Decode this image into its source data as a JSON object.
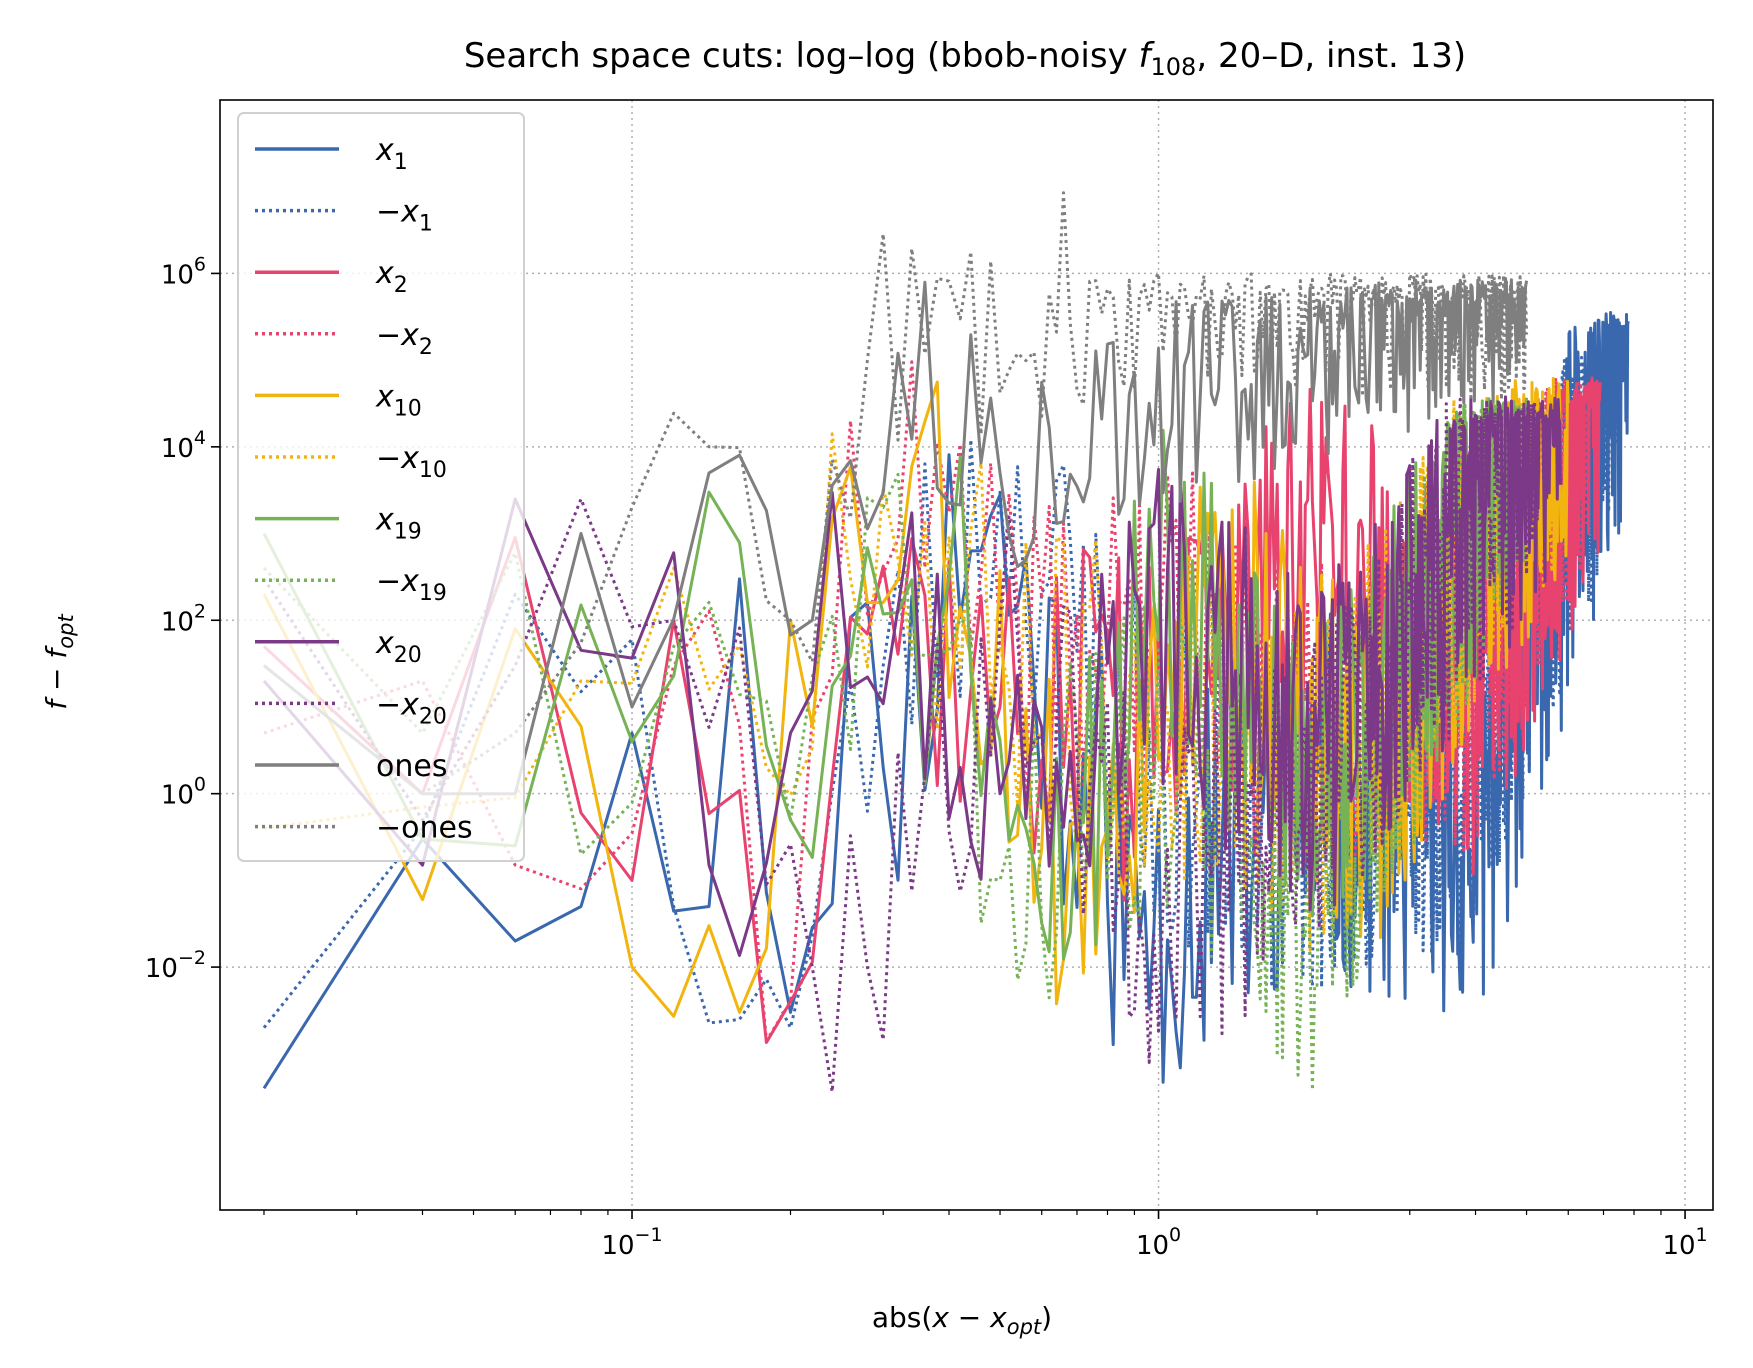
{
  "chart_data": {
    "type": "line",
    "title": "Search space cuts: log–log (bbob-noisy f108, 20–D, inst. 13)",
    "title_parts": {
      "prefix": "Search space cuts: log–log (bbob-noisy ",
      "fname": "f",
      "fsub": "108",
      "suffix": ", 20–D, inst. 13)"
    },
    "xlabel": "abs(x − x_opt)",
    "ylabel": "f − f_opt",
    "x_scale": "log",
    "y_scale": "log",
    "xlim": [
      0.0165,
      11.3
    ],
    "ylim": [
      1.58e-05,
      100000000
    ],
    "grid": true,
    "legend_position": "top-left",
    "x_ticks": [
      {
        "value": 0.1,
        "base": "10",
        "exp": "−1"
      },
      {
        "value": 1,
        "base": "10",
        "exp": "0"
      },
      {
        "value": 10,
        "base": "10",
        "exp": "1"
      }
    ],
    "y_ticks": [
      {
        "value": 0.01,
        "base": "10",
        "exp": "−2"
      },
      {
        "value": 1,
        "base": "10",
        "exp": "0"
      },
      {
        "value": 100,
        "base": "10",
        "exp": "2"
      },
      {
        "value": 10000,
        "base": "10",
        "exp": "4"
      },
      {
        "value": 1000000,
        "base": "10",
        "exp": "6"
      }
    ],
    "series": [
      {
        "name": "x_1",
        "label_main": "x",
        "label_sub": "1",
        "label_neg": false,
        "color": "#3a68ae",
        "dashed": false,
        "x_end": 7.8,
        "y_points": [
          [
            0.02,
            0.0004
          ],
          [
            0.04,
            0.3
          ],
          [
            0.06,
            0.02
          ],
          [
            0.08,
            0.05
          ],
          [
            0.1,
            5
          ],
          [
            0.14,
            0.05
          ],
          [
            0.16,
            300
          ],
          [
            0.2,
            0.003
          ],
          [
            0.25,
            20
          ],
          [
            0.3,
            2
          ],
          [
            0.45,
            4000
          ],
          [
            0.9,
            0.03
          ],
          [
            2,
            1
          ],
          [
            4,
            0.3
          ],
          [
            7.8,
            300000
          ]
        ],
        "noise_spread": 2.2,
        "seed": 11
      },
      {
        "name": "−x_1",
        "label_main": "x",
        "label_sub": "1",
        "label_neg": true,
        "color": "#3a68ae",
        "dashed": true,
        "x_end": 7.4,
        "y_points": [
          [
            0.02,
            0.002
          ],
          [
            0.04,
            0.4
          ],
          [
            0.06,
            200
          ],
          [
            0.08,
            15
          ],
          [
            0.1,
            60
          ],
          [
            0.12,
            0.05
          ],
          [
            0.2,
            0.002
          ],
          [
            0.3,
            30
          ],
          [
            0.5,
            3000
          ],
          [
            1,
            2
          ],
          [
            2,
            0.4
          ],
          [
            4,
            2
          ],
          [
            7.4,
            100000
          ]
        ],
        "noise_spread": 2.0,
        "seed": 23
      },
      {
        "name": "x_2",
        "label_main": "x",
        "label_sub": "2",
        "label_neg": false,
        "color": "#e8436e",
        "dashed": false,
        "x_end": 6.9,
        "y_points": [
          [
            0.02,
            50
          ],
          [
            0.04,
            1
          ],
          [
            0.06,
            900
          ],
          [
            0.08,
            0.6
          ],
          [
            0.1,
            0.1
          ],
          [
            0.12,
            100
          ],
          [
            0.2,
            0.004
          ],
          [
            0.25,
            1000
          ],
          [
            0.5,
            10
          ],
          [
            1,
            5
          ],
          [
            2,
            1000
          ],
          [
            4,
            10
          ],
          [
            6.9,
            50000
          ]
        ],
        "noise_spread": 2.0,
        "seed": 37
      },
      {
        "name": "−x_2",
        "label_main": "x",
        "label_sub": "2",
        "label_neg": true,
        "color": "#e8436e",
        "dashed": true,
        "x_end": 6.5,
        "y_points": [
          [
            0.02,
            5
          ],
          [
            0.04,
            20
          ],
          [
            0.06,
            0.15
          ],
          [
            0.08,
            0.08
          ],
          [
            0.12,
            30
          ],
          [
            0.2,
            0.004
          ],
          [
            0.26,
            20000
          ],
          [
            0.5,
            50
          ],
          [
            1,
            100
          ],
          [
            2,
            5
          ],
          [
            4,
            20
          ],
          [
            6.5,
            50000
          ]
        ],
        "noise_spread": 2.0,
        "seed": 41
      },
      {
        "name": "x_10",
        "label_main": "x",
        "label_sub": "10",
        "label_neg": false,
        "color": "#f2b50f",
        "dashed": false,
        "x_end": 6.0,
        "y_points": [
          [
            0.02,
            200
          ],
          [
            0.04,
            0.06
          ],
          [
            0.06,
            80
          ],
          [
            0.08,
            6
          ],
          [
            0.1,
            0.01
          ],
          [
            0.14,
            0.03
          ],
          [
            0.16,
            0.003
          ],
          [
            0.2,
            100
          ],
          [
            0.35,
            10000
          ],
          [
            0.7,
            0.05
          ],
          [
            1.3,
            200
          ],
          [
            2.5,
            1
          ],
          [
            6,
            50000
          ]
        ],
        "noise_spread": 2.0,
        "seed": 53
      },
      {
        "name": "−x_10",
        "label_main": "x",
        "label_sub": "10",
        "label_neg": true,
        "color": "#f2b50f",
        "dashed": true,
        "x_end": 5.6,
        "y_points": [
          [
            0.02,
            0.4
          ],
          [
            0.04,
            0.7
          ],
          [
            0.06,
            0.9
          ],
          [
            0.08,
            20
          ],
          [
            0.12,
            400
          ],
          [
            0.18,
            2
          ],
          [
            0.25,
            5000
          ],
          [
            0.5,
            50
          ],
          [
            1,
            10
          ],
          [
            2,
            1
          ],
          [
            5.6,
            30000
          ]
        ],
        "noise_spread": 2.0,
        "seed": 67
      },
      {
        "name": "x_19",
        "label_main": "x",
        "label_sub": "19",
        "label_neg": false,
        "color": "#77b256",
        "dashed": false,
        "x_end": 5.0,
        "y_points": [
          [
            0.02,
            1000
          ],
          [
            0.04,
            0.3
          ],
          [
            0.06,
            0.25
          ],
          [
            0.08,
            150
          ],
          [
            0.1,
            4
          ],
          [
            0.14,
            3000
          ],
          [
            0.2,
            0.5
          ],
          [
            0.4,
            300
          ],
          [
            0.62,
            0.015
          ],
          [
            1,
            300
          ],
          [
            2,
            1
          ],
          [
            5,
            30000
          ]
        ],
        "noise_spread": 2.0,
        "seed": 71
      },
      {
        "name": "−x_19",
        "label_main": "x",
        "label_sub": "19",
        "label_neg": true,
        "color": "#77b256",
        "dashed": true,
        "x_end": 4.7,
        "y_points": [
          [
            0.02,
            400
          ],
          [
            0.04,
            5
          ],
          [
            0.06,
            600
          ],
          [
            0.08,
            0.2
          ],
          [
            0.12,
            50
          ],
          [
            0.2,
            0.5
          ],
          [
            0.3,
            2000
          ],
          [
            0.5,
            0.1
          ],
          [
            1,
            5
          ],
          [
            2,
            0.02
          ],
          [
            4.7,
            30000
          ]
        ],
        "noise_spread": 2.0,
        "seed": 83
      },
      {
        "name": "x_20",
        "label_main": "x",
        "label_sub": "20",
        "label_neg": false,
        "color": "#7b3988",
        "dashed": false,
        "x_end": 5.8,
        "y_points": [
          [
            0.02,
            20
          ],
          [
            0.04,
            0.15
          ],
          [
            0.06,
            2500
          ],
          [
            0.08,
            45
          ],
          [
            0.12,
            600
          ],
          [
            0.14,
            0.15
          ],
          [
            0.2,
            5
          ],
          [
            0.24,
            3000
          ],
          [
            0.5,
            1
          ],
          [
            1,
            100
          ],
          [
            2,
            2
          ],
          [
            5.8,
            30000
          ]
        ],
        "noise_spread": 2.0,
        "seed": 97
      },
      {
        "name": "−x_20",
        "label_main": "x",
        "label_sub": "20",
        "label_neg": true,
        "color": "#7b3988",
        "dashed": true,
        "x_end": 5.4,
        "y_points": [
          [
            0.02,
            300
          ],
          [
            0.04,
            0.5
          ],
          [
            0.06,
            30
          ],
          [
            0.08,
            2500
          ],
          [
            0.12,
            100
          ],
          [
            0.22,
            0.01
          ],
          [
            0.28,
            0.01
          ],
          [
            0.5,
            100
          ],
          [
            1,
            0.05
          ],
          [
            2,
            1
          ],
          [
            5.4,
            30000
          ]
        ],
        "noise_spread": 2.0,
        "seed": 101
      },
      {
        "name": "ones",
        "label_main": "ones",
        "label_sub": "",
        "label_neg": false,
        "color": "#7f7f7f",
        "dashed": false,
        "x_end": 5.0,
        "y_points": [
          [
            0.02,
            30
          ],
          [
            0.04,
            1
          ],
          [
            0.06,
            1
          ],
          [
            0.08,
            1000
          ],
          [
            0.1,
            10
          ],
          [
            0.14,
            5000
          ],
          [
            0.16,
            8000
          ],
          [
            0.22,
            100
          ],
          [
            0.32,
            120000
          ],
          [
            0.5,
            5000
          ],
          [
            1,
            30000
          ],
          [
            2,
            100000
          ],
          [
            5,
            700000
          ]
        ],
        "noise_spread": 1.2,
        "seed": 113
      },
      {
        "name": "−ones",
        "label_main": "ones",
        "label_sub": "",
        "label_neg": true,
        "color": "#7f7f7f",
        "dashed": true,
        "x_end": 5.0,
        "y_points": [
          [
            0.02,
            30
          ],
          [
            0.04,
            1
          ],
          [
            0.06,
            5
          ],
          [
            0.1,
            2000
          ],
          [
            0.14,
            10000
          ],
          [
            0.2,
            100
          ],
          [
            0.28,
            100000
          ],
          [
            0.42,
            300000
          ],
          [
            1,
            1000000
          ],
          [
            2,
            1000000
          ],
          [
            5,
            800000
          ]
        ],
        "noise_spread": 1.4,
        "seed": 127
      }
    ]
  }
}
